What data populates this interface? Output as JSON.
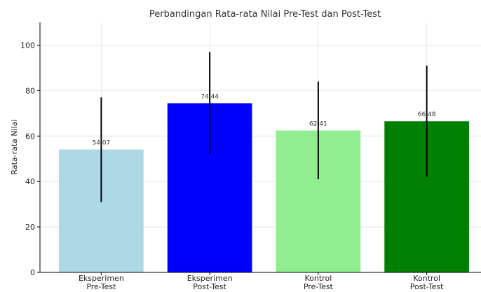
{
  "chart_data": {
    "type": "bar",
    "title": "Perbandingan Rata-rata Nilai Pre-Test dan Post-Test",
    "xlabel": "",
    "ylabel": "Rata-rata Nilai",
    "ylim": [
      0,
      110
    ],
    "yticks": [
      0,
      20,
      40,
      60,
      80,
      100
    ],
    "grid": true,
    "categories": [
      [
        "Eksperimen",
        "Pre-Test"
      ],
      [
        "Eksperimen",
        "Post-Test"
      ],
      [
        "Kontrol",
        "Pre-Test"
      ],
      [
        "Kontrol",
        "Post-Test"
      ]
    ],
    "values": [
      54.07,
      74.44,
      62.41,
      66.48
    ],
    "value_labels": [
      "54.07",
      "74.44",
      "62.41",
      "66.48"
    ],
    "error_low": [
      31,
      52,
      41,
      42
    ],
    "error_high": [
      77,
      97,
      84,
      91
    ],
    "colors": [
      "#add8e6",
      "#0000ff",
      "#90ee90",
      "#008000"
    ]
  }
}
